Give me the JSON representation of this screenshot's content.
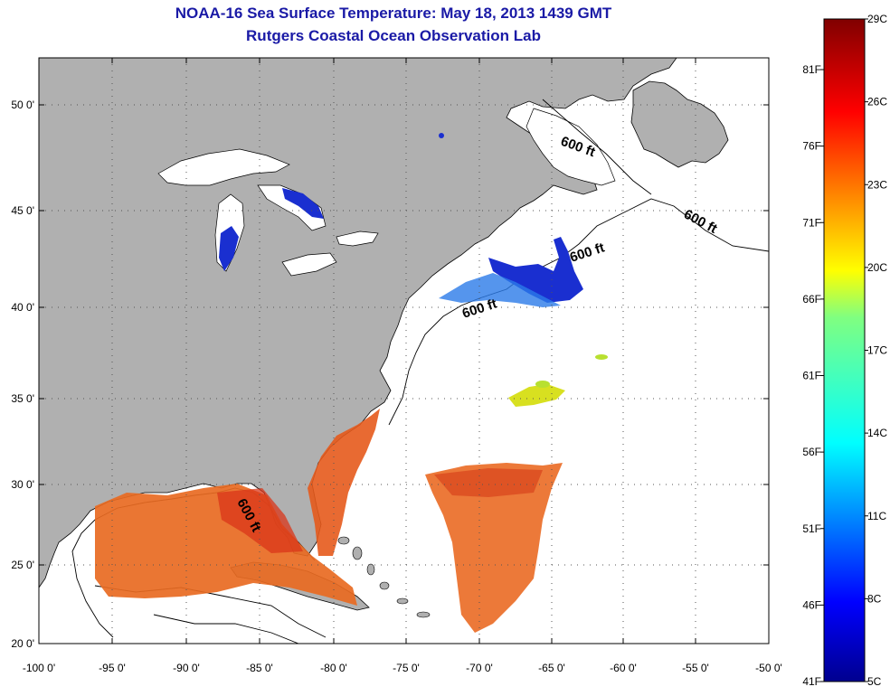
{
  "title": {
    "line1": "NOAA-16 Sea Surface Temperature:  May 18, 2013 1439 GMT",
    "line2": "Rutgers Coastal Ocean Observation Lab"
  },
  "map_axes": {
    "lon_labels": [
      "-100 0'",
      "-95 0'",
      "-90 0'",
      "-85 0'",
      "-80 0'",
      "-75 0'",
      "-70 0'",
      "-65 0'",
      "-60 0'",
      "-55 0'",
      "-50 0'"
    ],
    "lat_labels": [
      "50 0'",
      "45 0'",
      "40 0'",
      "35 0'",
      "30 0'",
      "25 0'",
      "20 0'"
    ]
  },
  "isobath_labels": [
    "600 ft",
    "600 ft",
    "600 ft",
    "600 ft",
    "600 ft"
  ],
  "colorbar": {
    "celsius_labels": [
      "29C",
      "26C",
      "23C",
      "20C",
      "17C",
      "14C",
      "11C",
      "8C",
      "5C"
    ],
    "fahrenheit_labels": [
      "81F",
      "76F",
      "71F",
      "66F",
      "61F",
      "56F",
      "51F",
      "46F",
      "41F"
    ]
  },
  "colors": {
    "land": "#b0b0b0",
    "ocean": "#ffffff",
    "title": "#1a1aa6",
    "warm": "#e8501a",
    "cold": "#1a2fd0",
    "mid": "#d8e020"
  },
  "legend_title": ""
}
